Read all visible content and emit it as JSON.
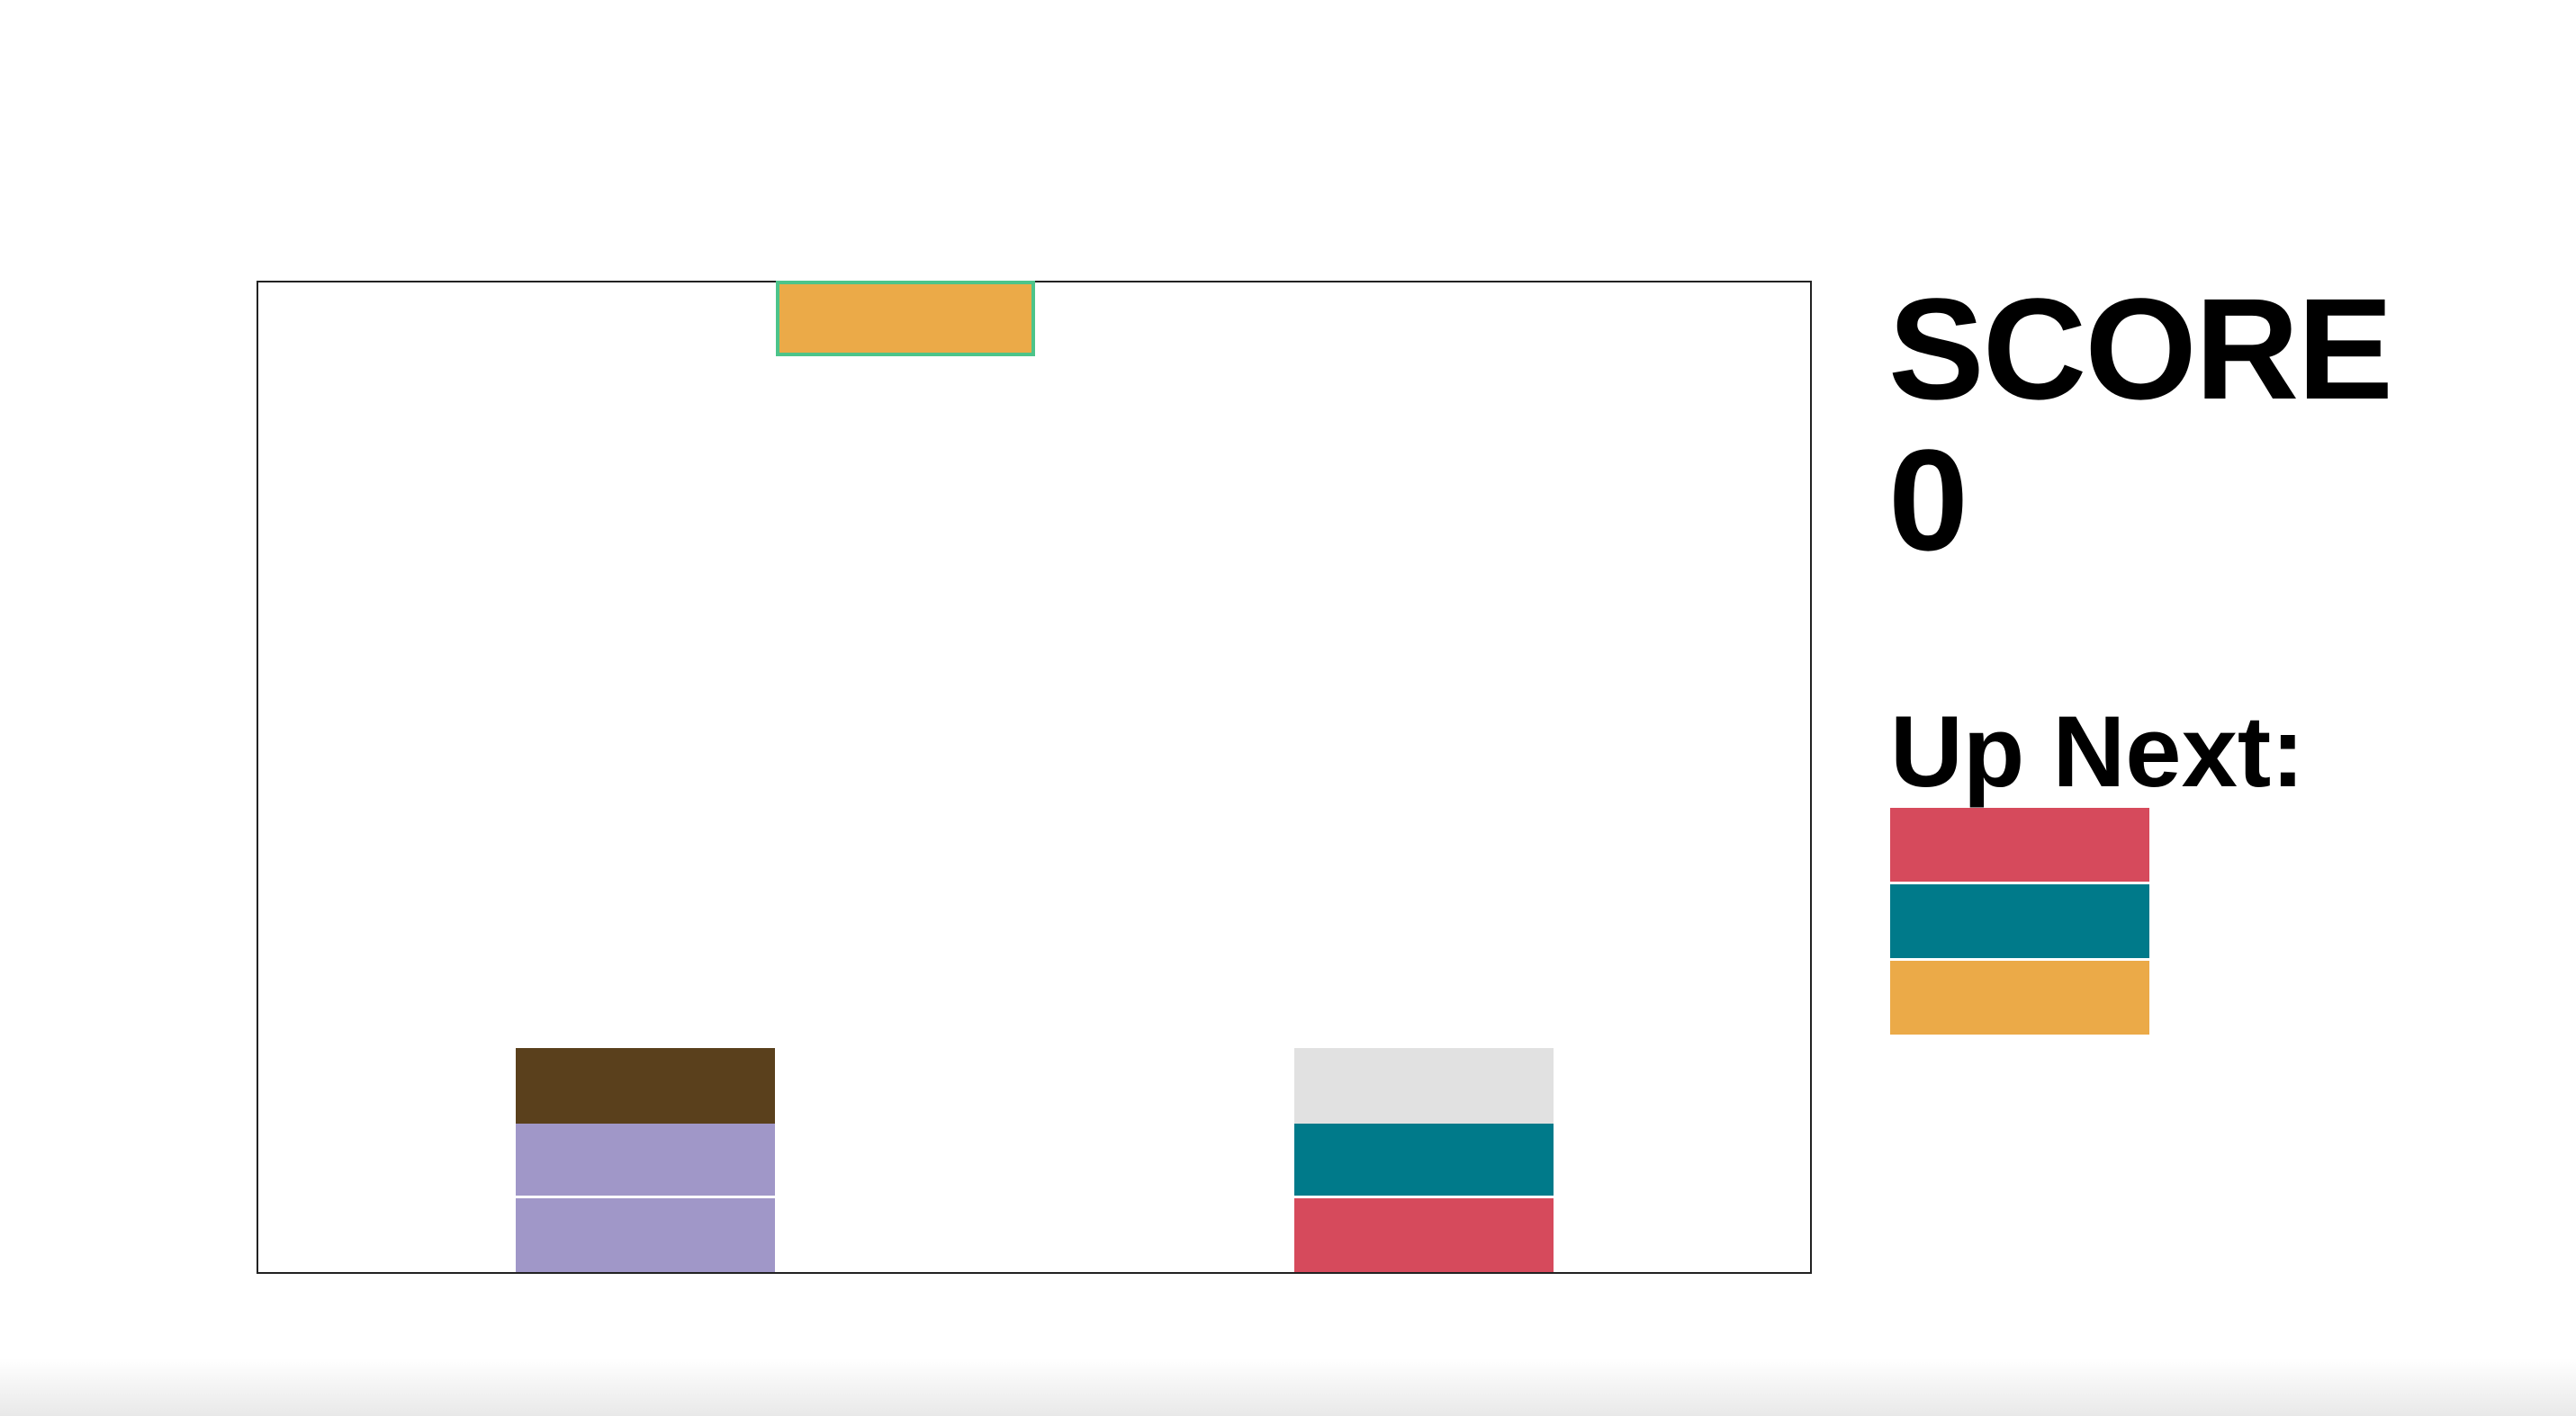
{
  "scoreboard": {
    "label": "SCORE",
    "value": "0"
  },
  "up_next": {
    "label": "Up Next:",
    "pieces": [
      {
        "color": "#d64a5c"
      },
      {
        "color": "#007a8a"
      },
      {
        "color": "#ebaa48"
      }
    ]
  },
  "falling_piece": {
    "color": "#ebaa48",
    "outline_color": "#4cc48a"
  },
  "stacks": [
    {
      "name": "left",
      "blocks": [
        "#5a401c",
        "#a097c8",
        "#a097c8"
      ]
    },
    {
      "name": "right",
      "blocks": [
        "#e1e1e1",
        "#007a8a",
        "#d64a5c"
      ]
    }
  ]
}
